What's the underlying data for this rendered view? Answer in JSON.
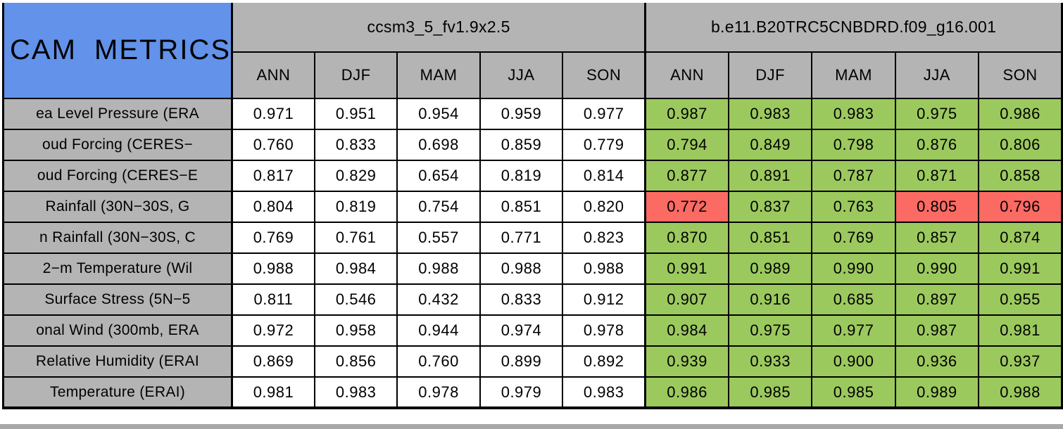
{
  "title": "CAM METRICS",
  "header": {
    "models": [
      {
        "name": "ccsm3_5_fv1.9x2.5"
      },
      {
        "name": "b.e11.B20TRC5CNBDRD.f09_g16.001"
      }
    ],
    "seasons": [
      "ANN",
      "DJF",
      "MAM",
      "JJA",
      "SON"
    ]
  },
  "colors": {
    "title_bg": "#6292ea",
    "header_bg": "#b4b4b4",
    "better_green": "#9cc95e",
    "worse_red": "#fb6a63",
    "baseline_cell": "#ffffff",
    "grid": "#000000",
    "bottom_strip": "#a8a8a8"
  },
  "chart_data": {
    "type": "table",
    "title": "CAM METRICS",
    "column_groups": [
      "ccsm3_5_fv1.9x2.5",
      "b.e11.B20TRC5CNBDRD.f09_g16.001"
    ],
    "columns": [
      "ANN",
      "DJF",
      "MAM",
      "JJA",
      "SON",
      "ANN",
      "DJF",
      "MAM",
      "JJA",
      "SON"
    ],
    "rows": [
      {
        "label": "ea Level Pressure (ERA",
        "ccsm3_5": [
          "0.971",
          "0.951",
          "0.954",
          "0.959",
          "0.977"
        ],
        "cesm": [
          "0.987",
          "0.983",
          "0.983",
          "0.975",
          "0.986"
        ],
        "cesm_colors": [
          "green",
          "green",
          "green",
          "green",
          "green"
        ]
      },
      {
        "label": "oud Forcing (CERES−",
        "ccsm3_5": [
          "0.760",
          "0.833",
          "0.698",
          "0.859",
          "0.779"
        ],
        "cesm": [
          "0.794",
          "0.849",
          "0.798",
          "0.876",
          "0.806"
        ],
        "cesm_colors": [
          "green",
          "green",
          "green",
          "green",
          "green"
        ]
      },
      {
        "label": "oud Forcing (CERES−E",
        "ccsm3_5": [
          "0.817",
          "0.829",
          "0.654",
          "0.819",
          "0.814"
        ],
        "cesm": [
          "0.877",
          "0.891",
          "0.787",
          "0.871",
          "0.858"
        ],
        "cesm_colors": [
          "green",
          "green",
          "green",
          "green",
          "green"
        ]
      },
      {
        "label": "Rainfall (30N−30S, G",
        "ccsm3_5": [
          "0.804",
          "0.819",
          "0.754",
          "0.851",
          "0.820"
        ],
        "cesm": [
          "0.772",
          "0.837",
          "0.763",
          "0.805",
          "0.796"
        ],
        "cesm_colors": [
          "red",
          "green",
          "green",
          "red",
          "red"
        ]
      },
      {
        "label": "n Rainfall (30N−30S, C",
        "ccsm3_5": [
          "0.769",
          "0.761",
          "0.557",
          "0.771",
          "0.823"
        ],
        "cesm": [
          "0.870",
          "0.851",
          "0.769",
          "0.857",
          "0.874"
        ],
        "cesm_colors": [
          "green",
          "green",
          "green",
          "green",
          "green"
        ]
      },
      {
        "label": "2−m Temperature (Wil",
        "ccsm3_5": [
          "0.988",
          "0.984",
          "0.988",
          "0.988",
          "0.988"
        ],
        "cesm": [
          "0.991",
          "0.989",
          "0.990",
          "0.990",
          "0.991"
        ],
        "cesm_colors": [
          "green",
          "green",
          "green",
          "green",
          "green"
        ]
      },
      {
        "label": "Surface Stress (5N−5",
        "ccsm3_5": [
          "0.811",
          "0.546",
          "0.432",
          "0.833",
          "0.912"
        ],
        "cesm": [
          "0.907",
          "0.916",
          "0.685",
          "0.897",
          "0.955"
        ],
        "cesm_colors": [
          "green",
          "green",
          "green",
          "green",
          "green"
        ]
      },
      {
        "label": "onal Wind (300mb, ERA",
        "ccsm3_5": [
          "0.972",
          "0.958",
          "0.944",
          "0.974",
          "0.978"
        ],
        "cesm": [
          "0.984",
          "0.975",
          "0.977",
          "0.987",
          "0.981"
        ],
        "cesm_colors": [
          "green",
          "green",
          "green",
          "green",
          "green"
        ]
      },
      {
        "label": "Relative Humidity (ERAI",
        "ccsm3_5": [
          "0.869",
          "0.856",
          "0.760",
          "0.899",
          "0.892"
        ],
        "cesm": [
          "0.939",
          "0.933",
          "0.900",
          "0.936",
          "0.937"
        ],
        "cesm_colors": [
          "green",
          "green",
          "green",
          "green",
          "green"
        ]
      },
      {
        "label": "Temperature (ERAI)",
        "ccsm3_5": [
          "0.981",
          "0.983",
          "0.978",
          "0.979",
          "0.983"
        ],
        "cesm": [
          "0.986",
          "0.985",
          "0.985",
          "0.989",
          "0.988"
        ],
        "cesm_colors": [
          "green",
          "green",
          "green",
          "green",
          "green"
        ]
      }
    ]
  }
}
